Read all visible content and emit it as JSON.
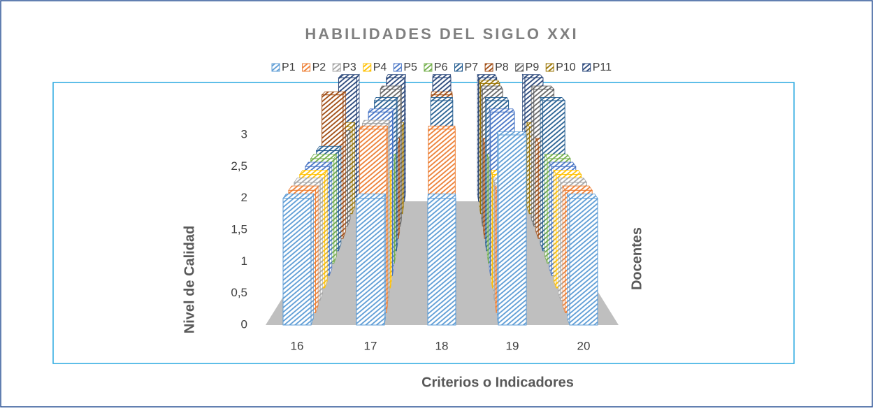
{
  "chart_data": {
    "type": "bar3d",
    "title": "HABILIDADES DEL SIGLO XXI",
    "xlabel": "Criterios o Indicadores",
    "ylabel": "Nivel de Calidad",
    "zlabel": "Docentes",
    "categories": [
      "16",
      "17",
      "18",
      "19",
      "20"
    ],
    "ylim": [
      0,
      3
    ],
    "yticks": [
      0,
      {
        "value": 0.5,
        "label": "0,5"
      },
      1,
      {
        "value": 1.5,
        "label": "1,5"
      },
      2,
      {
        "value": 2.5,
        "label": "2,5"
      },
      3
    ],
    "legend": "top",
    "series": [
      {
        "name": "P1",
        "color": "#5b9bd5",
        "values": [
          2,
          2,
          2,
          3,
          2
        ]
      },
      {
        "name": "P2",
        "color": "#ed7d31",
        "values": [
          2,
          3,
          3,
          2,
          2
        ]
      },
      {
        "name": "P3",
        "color": "#a5a5a5",
        "values": [
          2,
          3,
          2,
          2,
          2
        ]
      },
      {
        "name": "P4",
        "color": "#ffc000",
        "values": [
          2,
          2,
          2,
          2,
          2
        ]
      },
      {
        "name": "P5",
        "color": "#4472c4",
        "values": [
          2,
          3,
          2,
          3,
          2
        ]
      },
      {
        "name": "P6",
        "color": "#70ad47",
        "values": [
          2,
          2,
          2,
          2,
          2
        ]
      },
      {
        "name": "P7",
        "color": "#255e91",
        "values": [
          2,
          3,
          3,
          3,
          3
        ]
      },
      {
        "name": "P8",
        "color": "#9e480e",
        "values": [
          3,
          2,
          3,
          2,
          2
        ]
      },
      {
        "name": "P9",
        "color": "#636363",
        "values": [
          2,
          3,
          2,
          3,
          3
        ]
      },
      {
        "name": "P10",
        "color": "#997300",
        "values": [
          2,
          2,
          2,
          3,
          2
        ]
      },
      {
        "name": "P11",
        "color": "#264478",
        "values": [
          3,
          3,
          3,
          3,
          3
        ]
      }
    ]
  }
}
